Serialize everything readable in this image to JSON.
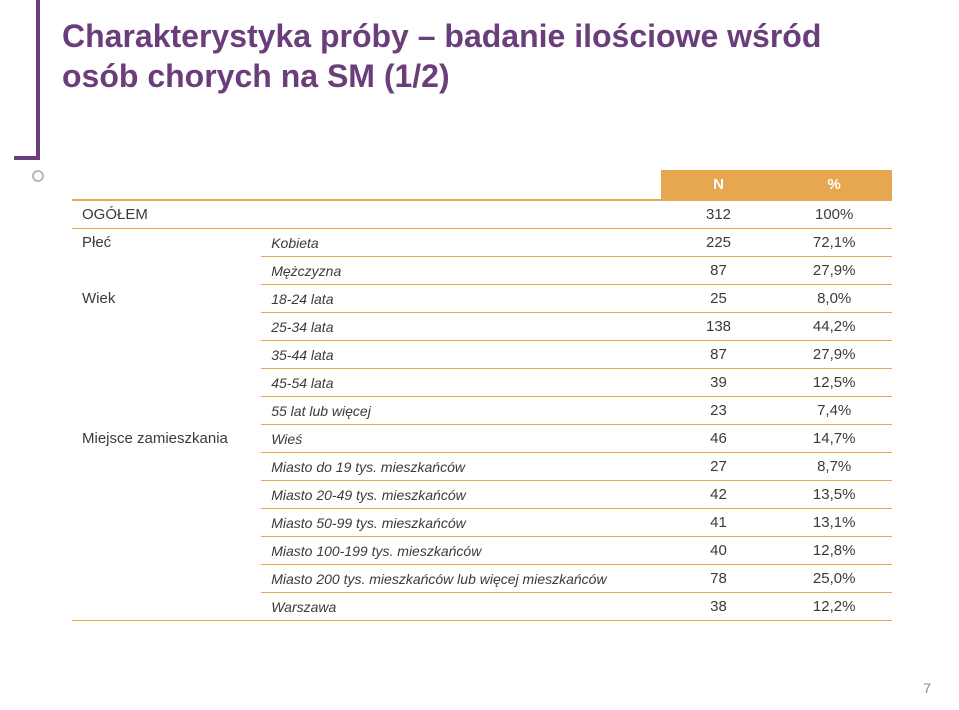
{
  "title_line1": "Charakterystyka próby – badanie ilościowe wśród",
  "title_line2": "osób chorych na SM (1/2)",
  "header": {
    "col_n": "N",
    "col_pct": "%"
  },
  "rows": [
    {
      "cat": "OGÓŁEM",
      "sub": "",
      "n": "312",
      "pct": "100%",
      "catspan": 1,
      "catborder": true
    },
    {
      "cat": "Płeć",
      "sub": "Kobieta",
      "n": "225",
      "pct": "72,1%",
      "catspan": 2
    },
    {
      "cat": "",
      "sub": "Mężczyzna",
      "n": "87",
      "pct": "27,9%"
    },
    {
      "cat": "Wiek",
      "sub": "18-24 lata",
      "n": "25",
      "pct": "8,0%",
      "catspan": 5
    },
    {
      "cat": "",
      "sub": "25-34 lata",
      "n": "138",
      "pct": "44,2%"
    },
    {
      "cat": "",
      "sub": "35-44 lata",
      "n": "87",
      "pct": "27,9%"
    },
    {
      "cat": "",
      "sub": "45-54 lata",
      "n": "39",
      "pct": "12,5%"
    },
    {
      "cat": "",
      "sub": "55 lat lub więcej",
      "n": "23",
      "pct": "7,4%"
    },
    {
      "cat": "Miejsce zamieszkania",
      "sub": "Wieś",
      "n": "46",
      "pct": "14,7%",
      "catspan": 7,
      "catborder": true
    },
    {
      "cat": "",
      "sub": "Miasto do 19 tys. mieszkańców",
      "n": "27",
      "pct": "8,7%"
    },
    {
      "cat": "",
      "sub": "Miasto 20-49 tys. mieszkańców",
      "n": "42",
      "pct": "13,5%"
    },
    {
      "cat": "",
      "sub": "Miasto 50-99 tys. mieszkańców",
      "n": "41",
      "pct": "13,1%"
    },
    {
      "cat": "",
      "sub": "Miasto 100-199 tys. mieszkańców",
      "n": "40",
      "pct": "12,8%"
    },
    {
      "cat": "",
      "sub": "Miasto 200 tys. mieszkańców lub więcej mieszkańców",
      "n": "78",
      "pct": "25,0%"
    },
    {
      "cat": "",
      "sub": "Warszawa",
      "n": "38",
      "pct": "12,2%"
    }
  ],
  "page_number": "7",
  "colors": {
    "accent": "#6a3e7a",
    "table_header_bg": "#e7a750",
    "table_border": "#e7a750",
    "text": "#3b3b3b"
  }
}
